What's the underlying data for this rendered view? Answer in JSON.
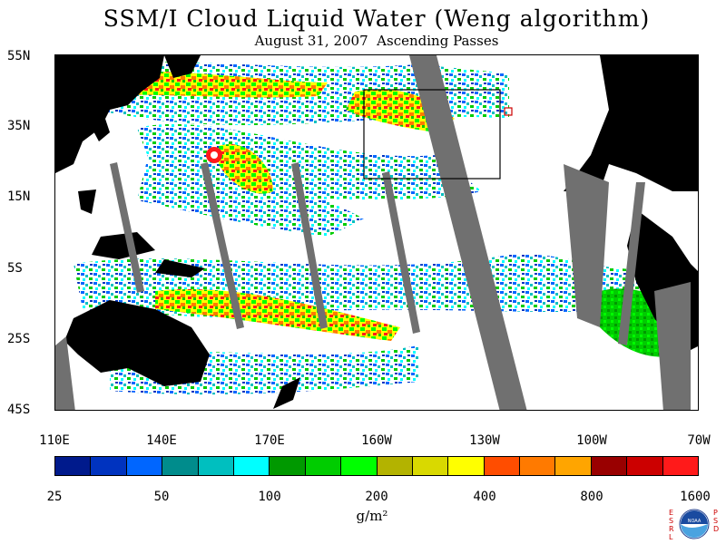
{
  "map": {
    "title": "SSM/I Cloud Liquid Water (Weng algorithm)",
    "date": "August 31, 2007",
    "pass": "Ascending Passes",
    "lat_labels": [
      "55N",
      "35N",
      "15N",
      "5S",
      "25S",
      "45S"
    ],
    "lon_labels": [
      "110E",
      "140E",
      "170E",
      "160W",
      "130W",
      "100W",
      "70W"
    ]
  },
  "colorbar": {
    "colors": [
      "#001a8c",
      "#0033bf",
      "#0066ff",
      "#008c8c",
      "#00bfbf",
      "#00ffff",
      "#009900",
      "#00cc00",
      "#00ff00",
      "#b3b300",
      "#d9d900",
      "#ffff00",
      "#ff4d00",
      "#ff7a00",
      "#ffa500",
      "#990000",
      "#cc0000",
      "#ff1a1a"
    ],
    "tick_labels": [
      "25",
      "50",
      "100",
      "200",
      "400",
      "800",
      "1600"
    ],
    "units": "g/m²"
  },
  "logo": {
    "org": "NOAA",
    "left": "ESRL",
    "right": "PSD"
  }
}
